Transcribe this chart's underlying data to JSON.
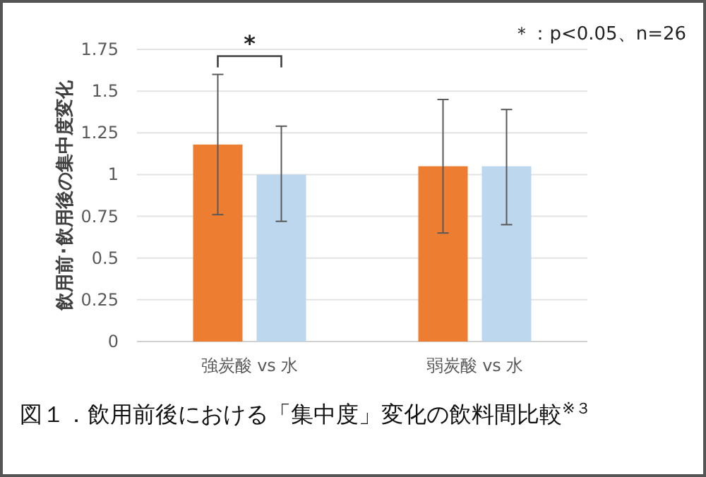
{
  "chart_data": {
    "type": "bar",
    "title": "図１．飲用前後における「集中度」変化の飲料間比較$^{※３}$",
    "ylabel": "飲用前･飲用後の集中度変化",
    "categories": [
      "強炭酸 vs 水",
      "弱炭酸 vs 水"
    ],
    "series": [
      {
        "color": "#ed7d31",
        "values": [
          1.18,
          1.05
        ],
        "errors": [
          [
            0.76,
            1.6
          ],
          [
            0.65,
            1.45
          ]
        ]
      },
      {
        "color": "#bdd7ee",
        "values": [
          1.0,
          1.05
        ],
        "errors": [
          [
            0.72,
            1.29
          ],
          [
            0.7,
            1.39
          ]
        ]
      }
    ],
    "ylim": [
      0,
      1.75
    ],
    "yticks": [
      0,
      {
        "value": 0.25,
        "label": "0.25"
      },
      {
        "value": 0.5,
        "label": "0.5"
      },
      {
        "value": 0.75,
        "label": "0.75"
      },
      1,
      {
        "value": 1.25,
        "label": "1.25"
      },
      {
        "value": 1.5,
        "label": "1.5"
      },
      {
        "value": 1.75,
        "label": "1.75"
      }
    ],
    "grid": "y",
    "annotations": [
      "*",
      "＊：p<0.05、n=26"
    ]
  }
}
